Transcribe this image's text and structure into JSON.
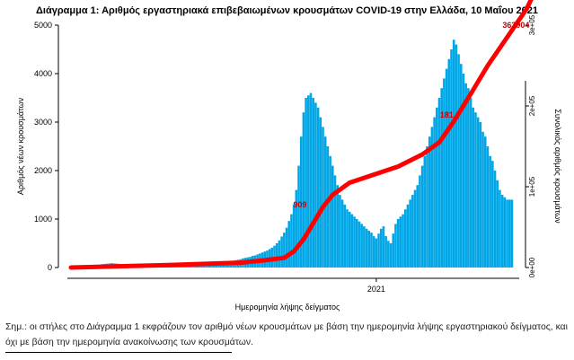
{
  "title": "Διάγραμμα 1: Αριθμός εργαστηριακά επιβεβαιωμένων κρουσμάτων COVID-19 στην Ελλάδα, 10 Μαΐου 2021",
  "note": "Σημ.: οι στήλες στο Διάγραμμα 1 εκφράζουν τον αριθμό νέων κρουσμάτων με βάση την ημερομηνία λήψης εργαστηριακού δείγματος, και όχι με βάση την ημερομηνία ανακοίνωσης των κρουσμάτων.",
  "colors": {
    "bars": "#00a6e6",
    "cumulative_line": "#ff0000",
    "annotation": "#cc0000"
  },
  "chart_data": {
    "type": "bar",
    "title": "Διάγραμμα 1: Αριθμός εργαστηριακά επιβεβαιωμένων κρουσμάτων COVID-19 στην Ελλάδα, 10 Μαΐου 2021",
    "xlabel": "Ημερομηνία λήψης δείγματος",
    "ylabel": "Αριθμός νέων κρουσμάτων",
    "y2label": "Συνολικός αριθμός κρουσμάτων",
    "x_tick_labels": [
      "2021"
    ],
    "x_tick_index": 126,
    "ylim": [
      0,
      5000
    ],
    "yticks": [
      0,
      1000,
      2000,
      3000,
      4000,
      5000
    ],
    "y2lim": [
      0,
      300000
    ],
    "y2ticks": [
      "0e+00",
      "1e+05",
      "2e+05",
      "3e+05"
    ],
    "grid": false,
    "series": [
      {
        "kind": "bar",
        "unit": "daily new cases by sampling date (approx., pointwise)",
        "values": [
          5,
          8,
          10,
          12,
          15,
          20,
          25,
          30,
          40,
          45,
          50,
          55,
          60,
          70,
          75,
          80,
          85,
          90,
          85,
          80,
          75,
          70,
          65,
          60,
          60,
          55,
          55,
          60,
          60,
          55,
          50,
          45,
          40,
          40,
          35,
          35,
          30,
          30,
          25,
          25,
          20,
          20,
          20,
          25,
          25,
          25,
          30,
          30,
          30,
          30,
          35,
          40,
          45,
          45,
          50,
          60,
          60,
          65,
          70,
          75,
          80,
          90,
          95,
          100,
          110,
          120,
          130,
          140,
          150,
          160,
          170,
          190,
          200,
          210,
          220,
          240,
          250,
          270,
          290,
          310,
          330,
          350,
          380,
          410,
          450,
          500,
          560,
          640,
          720,
          820,
          960,
          1100,
          1300,
          1600,
          2100,
          2700,
          3200,
          3500,
          3550,
          3600,
          3500,
          3400,
          3300,
          3100,
          2900,
          2700,
          2500,
          2300,
          2100,
          1900,
          1700,
          1500,
          1400,
          1300,
          1200,
          1150,
          1100,
          1050,
          1000,
          950,
          900,
          850,
          800,
          760,
          720,
          650,
          600,
          700,
          800,
          850,
          650,
          550,
          500,
          700,
          900,
          1000,
          1050,
          1100,
          1200,
          1300,
          1400,
          1500,
          1600,
          1700,
          1900,
          2100,
          2300,
          2500,
          2700,
          2900,
          3100,
          3300,
          3500,
          3700,
          3900,
          4100,
          4300,
          4500,
          4700,
          4600,
          4400,
          4200,
          4000,
          3800,
          3700,
          3500,
          3300,
          3200,
          3100,
          3000,
          2800,
          2700,
          2500,
          2300,
          2200,
          2000,
          1800,
          1600,
          1500,
          1450,
          1400,
          1400,
          1400
        ]
      },
      {
        "kind": "line",
        "axis": "right",
        "unit": "cumulative cases (approx.)",
        "points": [
          [
            0,
            0
          ],
          [
            40,
            3000
          ],
          [
            70,
            6000
          ],
          [
            80,
            9000
          ],
          [
            88,
            12000
          ],
          [
            92,
            20000
          ],
          [
            96,
            35000
          ],
          [
            100,
            55000
          ],
          [
            104,
            75000
          ],
          [
            108,
            90000
          ],
          [
            115,
            105000
          ],
          [
            125,
            115000
          ],
          [
            135,
            125000
          ],
          [
            145,
            140000
          ],
          [
            152,
            155000
          ],
          [
            158,
            181000
          ],
          [
            165,
            215000
          ],
          [
            172,
            250000
          ],
          [
            180,
            285000
          ],
          [
            188,
            320000
          ],
          [
            192,
            345000
          ],
          [
            194,
            363904
          ]
        ]
      }
    ],
    "annotations": [
      {
        "text": "363904",
        "x": 194,
        "y2": 363904
      },
      {
        "text": "181",
        "x": 158,
        "y2": 181000
      },
      {
        "text": "909",
        "x": 96,
        "y2": 90000
      }
    ]
  }
}
